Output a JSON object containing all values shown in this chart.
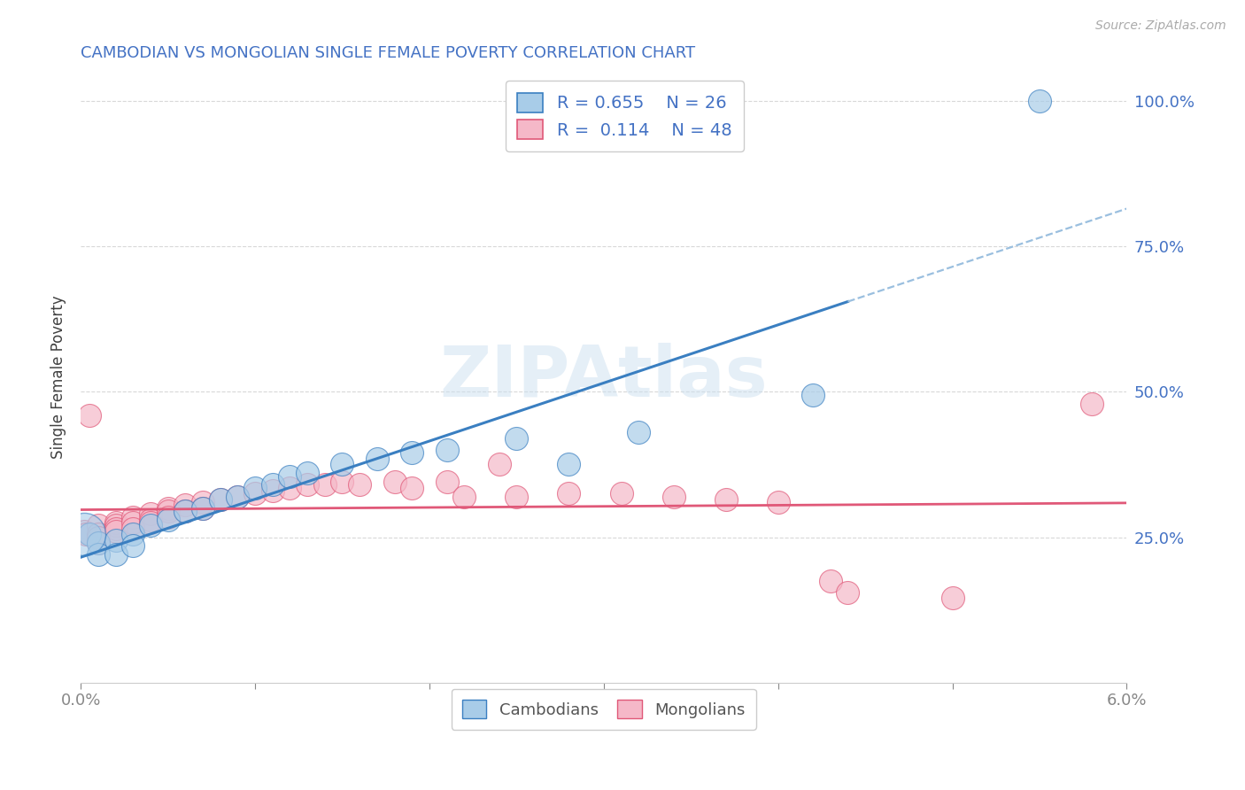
{
  "title": "CAMBODIAN VS MONGOLIAN SINGLE FEMALE POVERTY CORRELATION CHART",
  "source": "Source: ZipAtlas.com",
  "ylabel": "Single Female Poverty",
  "xmin": 0.0,
  "xmax": 0.06,
  "ymin": 0.0,
  "ymax": 1.05,
  "xtick_positions": [
    0.0,
    0.01,
    0.02,
    0.03,
    0.04,
    0.05,
    0.06
  ],
  "xtick_labels": [
    "0.0%",
    "",
    "",
    "",
    "",
    "",
    "6.0%"
  ],
  "ytick_positions": [
    0.25,
    0.5,
    0.75,
    1.0
  ],
  "ytick_labels": [
    "25.0%",
    "50.0%",
    "75.0%",
    "100.0%"
  ],
  "legend_cambodian_R": "0.655",
  "legend_cambodian_N": "26",
  "legend_mongolian_R": "0.114",
  "legend_mongolian_N": "48",
  "cambodian_color": "#a8cce8",
  "mongolian_color": "#f5b8c8",
  "trendline_cambodian_color": "#3a7fc1",
  "trendline_mongolian_color": "#e05878",
  "trendline_extrapolate_color": "#9abfdf",
  "watermark": "ZIPAtlas",
  "cambodian_points": [
    [
      0.0005,
      0.255
    ],
    [
      0.001,
      0.24
    ],
    [
      0.001,
      0.22
    ],
    [
      0.002,
      0.245
    ],
    [
      0.002,
      0.22
    ],
    [
      0.003,
      0.255
    ],
    [
      0.003,
      0.235
    ],
    [
      0.004,
      0.27
    ],
    [
      0.005,
      0.28
    ],
    [
      0.006,
      0.295
    ],
    [
      0.007,
      0.3
    ],
    [
      0.008,
      0.315
    ],
    [
      0.009,
      0.32
    ],
    [
      0.01,
      0.335
    ],
    [
      0.011,
      0.34
    ],
    [
      0.012,
      0.355
    ],
    [
      0.013,
      0.36
    ],
    [
      0.015,
      0.375
    ],
    [
      0.017,
      0.385
    ],
    [
      0.019,
      0.395
    ],
    [
      0.021,
      0.4
    ],
    [
      0.025,
      0.42
    ],
    [
      0.028,
      0.375
    ],
    [
      0.032,
      0.43
    ],
    [
      0.042,
      0.495
    ],
    [
      0.055,
      1.0
    ]
  ],
  "mongolian_points": [
    [
      0.0002,
      0.26
    ],
    [
      0.0003,
      0.255
    ],
    [
      0.0005,
      0.46
    ],
    [
      0.001,
      0.27
    ],
    [
      0.001,
      0.255
    ],
    [
      0.001,
      0.25
    ],
    [
      0.001,
      0.24
    ],
    [
      0.002,
      0.275
    ],
    [
      0.002,
      0.27
    ],
    [
      0.002,
      0.265
    ],
    [
      0.002,
      0.26
    ],
    [
      0.003,
      0.285
    ],
    [
      0.003,
      0.275
    ],
    [
      0.003,
      0.265
    ],
    [
      0.004,
      0.29
    ],
    [
      0.004,
      0.28
    ],
    [
      0.004,
      0.275
    ],
    [
      0.005,
      0.3
    ],
    [
      0.005,
      0.295
    ],
    [
      0.005,
      0.285
    ],
    [
      0.006,
      0.305
    ],
    [
      0.006,
      0.295
    ],
    [
      0.007,
      0.31
    ],
    [
      0.007,
      0.3
    ],
    [
      0.008,
      0.315
    ],
    [
      0.009,
      0.32
    ],
    [
      0.01,
      0.325
    ],
    [
      0.011,
      0.33
    ],
    [
      0.012,
      0.335
    ],
    [
      0.013,
      0.34
    ],
    [
      0.014,
      0.34
    ],
    [
      0.015,
      0.345
    ],
    [
      0.016,
      0.34
    ],
    [
      0.018,
      0.345
    ],
    [
      0.019,
      0.335
    ],
    [
      0.021,
      0.345
    ],
    [
      0.022,
      0.32
    ],
    [
      0.024,
      0.375
    ],
    [
      0.025,
      0.32
    ],
    [
      0.028,
      0.325
    ],
    [
      0.031,
      0.325
    ],
    [
      0.034,
      0.32
    ],
    [
      0.037,
      0.315
    ],
    [
      0.04,
      0.31
    ],
    [
      0.043,
      0.175
    ],
    [
      0.044,
      0.155
    ],
    [
      0.05,
      0.145
    ],
    [
      0.058,
      0.48
    ]
  ],
  "background_color": "#ffffff",
  "grid_color": "#d8d8d8",
  "title_color": "#4472C4",
  "axis_label_color": "#404040",
  "tick_color": "#888888",
  "legend_text_color": "#4472C4"
}
